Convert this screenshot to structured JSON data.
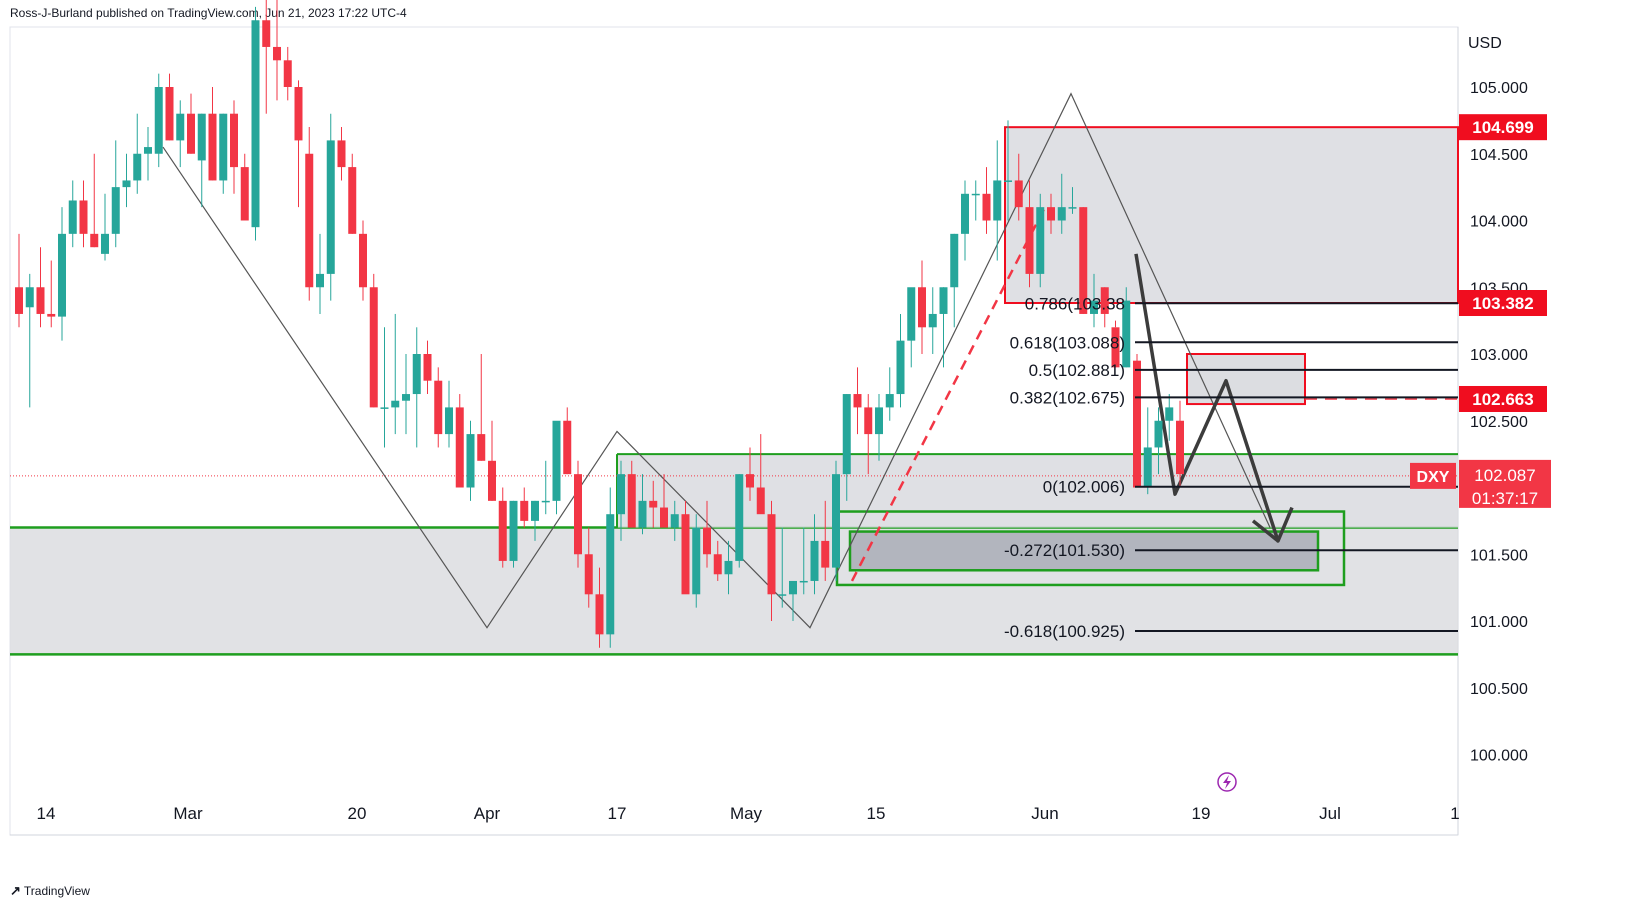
{
  "header": {
    "publisher": "Ross-J-Burland published on TradingView.com, Jun 21, 2023 17:22 UTC-4"
  },
  "footer": {
    "brand": "TradingView"
  },
  "colors": {
    "up": "#26a69a",
    "down": "#f23645",
    "green_line": "#1e9e1e",
    "red_box": "#f00d1f",
    "zone": "#dcdde1",
    "fib": "#131722"
  },
  "icons": [
    "lightning-icon",
    "tradingview-logo-icon"
  ],
  "chart_data": {
    "type": "candlestick",
    "symbol": "DXY",
    "currency": "USD",
    "ylim": [
      99.7,
      105.4
    ],
    "y_ticks": [
      "105.000",
      "104.500",
      "104.000",
      "103.500",
      "103.000",
      "102.500",
      "101.500",
      "101.000",
      "100.500",
      "100.000"
    ],
    "x_ticks": [
      "14",
      "Mar",
      "20",
      "Apr",
      "17",
      "May",
      "15",
      "Jun",
      "19",
      "Jul",
      "1"
    ],
    "price_labels": [
      {
        "value": "104.699",
        "role": "resistance"
      },
      {
        "value": "103.382",
        "role": "fib-0.786"
      },
      {
        "value": "102.663",
        "role": "level"
      },
      {
        "value": "102.087",
        "role": "last",
        "symbol": "DXY",
        "countdown": "01:37:17"
      }
    ],
    "fib_levels": [
      {
        "label": "0.786(103.38",
        "value": 103.38
      },
      {
        "label": "0.618(103.088)",
        "value": 103.088
      },
      {
        "label": "0.5(102.881)",
        "value": 102.881
      },
      {
        "label": "0.382(102.675)",
        "value": 102.675
      },
      {
        "label": "0(102.006)",
        "value": 102.006
      },
      {
        "label": "-0.272(101.530)",
        "value": 101.53
      },
      {
        "label": "-0.618(100.925)",
        "value": 100.925
      }
    ],
    "candles_ohlc": [
      [
        103.5,
        103.9,
        103.2,
        103.3
      ],
      [
        103.35,
        103.6,
        102.6,
        103.5
      ],
      [
        103.5,
        103.8,
        103.2,
        103.3
      ],
      [
        103.3,
        103.7,
        103.2,
        103.28
      ],
      [
        103.28,
        104.1,
        103.1,
        103.9
      ],
      [
        103.9,
        104.3,
        103.8,
        104.15
      ],
      [
        104.15,
        104.3,
        103.8,
        103.9
      ],
      [
        103.9,
        104.5,
        103.8,
        103.8
      ],
      [
        103.75,
        104.2,
        103.7,
        103.9
      ],
      [
        103.9,
        104.6,
        103.8,
        104.25
      ],
      [
        104.25,
        104.5,
        104.1,
        104.3
      ],
      [
        104.3,
        104.8,
        104.2,
        104.5
      ],
      [
        104.5,
        104.7,
        104.3,
        104.55
      ],
      [
        104.5,
        105.1,
        104.4,
        105.0
      ],
      [
        105.0,
        105.1,
        104.6,
        104.6
      ],
      [
        104.6,
        104.9,
        104.4,
        104.8
      ],
      [
        104.8,
        104.95,
        104.5,
        104.5
      ],
      [
        104.45,
        104.8,
        104.1,
        104.8
      ],
      [
        104.8,
        105.0,
        104.3,
        104.3
      ],
      [
        104.3,
        104.8,
        104.2,
        104.8
      ],
      [
        104.8,
        104.9,
        104.2,
        104.4
      ],
      [
        104.4,
        104.5,
        104.1,
        104.0
      ],
      [
        103.95,
        105.6,
        103.85,
        105.5
      ],
      [
        105.5,
        105.7,
        104.8,
        105.3
      ],
      [
        105.3,
        105.8,
        104.9,
        105.2
      ],
      [
        105.2,
        105.3,
        104.9,
        105.0
      ],
      [
        105.0,
        105.05,
        104.1,
        104.6
      ],
      [
        104.5,
        104.7,
        103.4,
        103.5
      ],
      [
        103.5,
        103.9,
        103.3,
        103.6
      ],
      [
        103.6,
        104.8,
        103.4,
        104.6
      ],
      [
        104.6,
        104.7,
        104.3,
        104.4
      ],
      [
        104.4,
        104.5,
        103.9,
        103.9
      ],
      [
        103.9,
        104.0,
        103.4,
        103.5
      ],
      [
        103.5,
        103.6,
        102.6,
        102.6
      ],
      [
        102.6,
        103.2,
        102.3,
        102.6
      ],
      [
        102.6,
        103.3,
        102.4,
        102.65
      ],
      [
        102.65,
        103.0,
        102.4,
        102.7
      ],
      [
        102.7,
        103.2,
        102.3,
        103.0
      ],
      [
        103.0,
        103.1,
        102.7,
        102.8
      ],
      [
        102.8,
        102.9,
        102.3,
        102.4
      ],
      [
        102.4,
        102.8,
        102.3,
        102.6
      ],
      [
        102.6,
        102.7,
        102.0,
        102.0
      ],
      [
        102.0,
        102.5,
        101.9,
        102.4
      ],
      [
        102.4,
        103.0,
        102.2,
        102.2
      ],
      [
        102.2,
        102.5,
        101.9,
        101.9
      ],
      [
        101.9,
        102.0,
        101.4,
        101.45
      ],
      [
        101.45,
        101.9,
        101.4,
        101.9
      ],
      [
        101.9,
        102.0,
        101.7,
        101.75
      ],
      [
        101.75,
        101.9,
        101.6,
        101.9
      ],
      [
        101.9,
        102.2,
        101.8,
        101.9
      ],
      [
        101.9,
        102.4,
        101.8,
        102.5
      ],
      [
        102.5,
        102.6,
        102.1,
        102.1
      ],
      [
        102.1,
        102.2,
        101.4,
        101.5
      ],
      [
        101.5,
        101.7,
        101.1,
        101.2
      ],
      [
        101.2,
        101.4,
        100.8,
        100.9
      ],
      [
        100.9,
        102.0,
        100.8,
        101.8
      ],
      [
        101.8,
        102.2,
        101.6,
        102.1
      ],
      [
        102.1,
        102.2,
        101.7,
        101.7
      ],
      [
        101.7,
        102.1,
        101.65,
        101.9
      ],
      [
        101.9,
        102.05,
        101.7,
        101.85
      ],
      [
        101.85,
        102.1,
        101.7,
        101.7
      ],
      [
        101.7,
        101.9,
        101.6,
        101.8
      ],
      [
        101.8,
        101.9,
        101.3,
        101.2
      ],
      [
        101.2,
        101.8,
        101.1,
        101.7
      ],
      [
        101.7,
        101.9,
        101.4,
        101.5
      ],
      [
        101.5,
        101.6,
        101.3,
        101.35
      ],
      [
        101.35,
        101.6,
        101.2,
        101.45
      ],
      [
        101.45,
        102.1,
        101.4,
        102.1
      ],
      [
        102.1,
        102.3,
        101.9,
        102.0
      ],
      [
        102.0,
        102.4,
        101.9,
        101.8
      ],
      [
        101.8,
        101.9,
        101.0,
        101.2
      ],
      [
        101.2,
        101.7,
        101.1,
        101.2
      ],
      [
        101.2,
        101.3,
        101.0,
        101.3
      ],
      [
        101.3,
        101.7,
        101.2,
        101.3
      ],
      [
        101.3,
        101.8,
        101.2,
        101.6
      ],
      [
        101.6,
        101.9,
        101.3,
        101.4
      ],
      [
        101.4,
        102.2,
        101.3,
        102.1
      ],
      [
        102.1,
        102.7,
        101.9,
        102.7
      ],
      [
        102.7,
        102.9,
        102.4,
        102.6
      ],
      [
        102.6,
        102.7,
        102.1,
        102.4
      ],
      [
        102.4,
        102.7,
        102.2,
        102.6
      ],
      [
        102.6,
        102.9,
        102.5,
        102.7
      ],
      [
        102.7,
        103.3,
        102.6,
        103.1
      ],
      [
        103.1,
        103.3,
        102.9,
        103.5
      ],
      [
        103.5,
        103.7,
        103.0,
        103.2
      ],
      [
        103.2,
        103.5,
        103.0,
        103.3
      ],
      [
        103.3,
        103.5,
        102.9,
        103.5
      ],
      [
        103.5,
        103.9,
        103.2,
        103.9
      ],
      [
        103.9,
        104.3,
        103.7,
        104.2
      ],
      [
        104.2,
        104.3,
        104.0,
        104.2
      ],
      [
        104.2,
        104.4,
        103.9,
        104.0
      ],
      [
        104.0,
        104.6,
        103.7,
        104.3
      ],
      [
        104.3,
        104.75,
        104.0,
        104.3
      ],
      [
        104.3,
        104.5,
        104.0,
        104.1
      ],
      [
        104.1,
        104.3,
        103.5,
        103.6
      ],
      [
        103.6,
        104.2,
        103.5,
        104.1
      ],
      [
        104.1,
        104.2,
        103.9,
        104.0
      ],
      [
        104.0,
        104.35,
        103.9,
        104.1
      ],
      [
        104.1,
        104.25,
        104.05,
        104.1
      ],
      [
        104.1,
        104.1,
        103.3,
        103.3
      ],
      [
        103.3,
        103.6,
        103.2,
        103.4
      ],
      [
        103.5,
        103.5,
        103.2,
        103.3
      ],
      [
        103.2,
        103.25,
        103.2,
        102.9
      ],
      [
        102.9,
        103.5,
        102.9,
        103.4
      ],
      [
        102.95,
        103.0,
        102.0,
        102.0
      ],
      [
        102.0,
        102.6,
        101.95,
        102.3
      ],
      [
        102.3,
        102.6,
        102.1,
        102.5
      ],
      [
        102.5,
        102.7,
        102.35,
        102.6
      ],
      [
        102.5,
        102.65,
        102.0,
        102.1
      ]
    ],
    "last_price": 102.087
  }
}
